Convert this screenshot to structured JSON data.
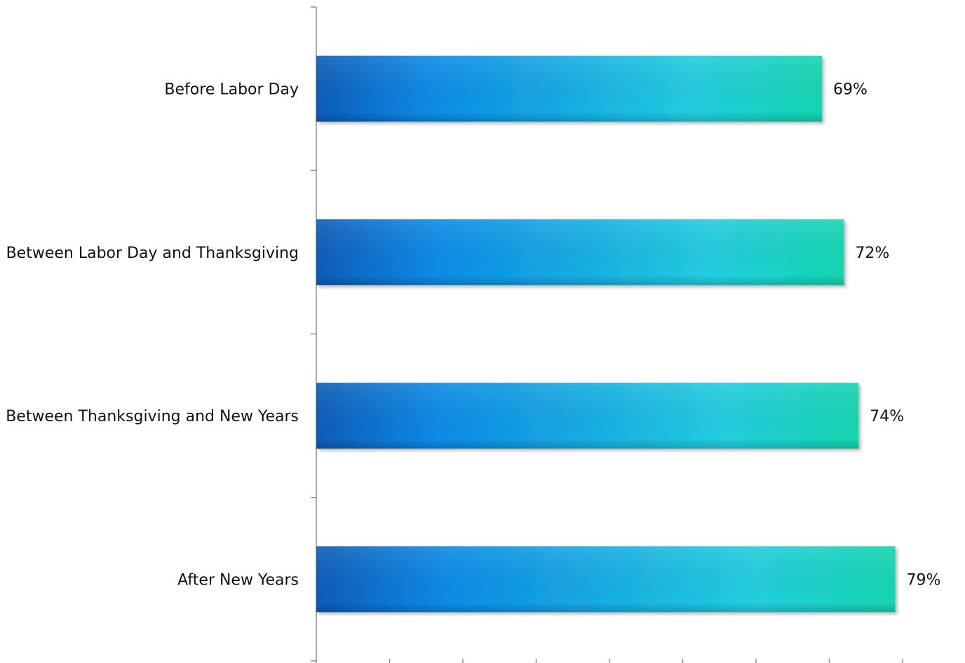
{
  "chart_data": {
    "type": "bar",
    "orientation": "horizontal",
    "categories": [
      "Before Labor Day",
      "Between Labor Day and Thanksgiving",
      "Between Thanksgiving and New Years",
      "After New Years"
    ],
    "values": [
      69,
      72,
      74,
      79
    ],
    "value_labels": [
      "69%",
      "72%",
      "74%",
      "79%"
    ],
    "value_suffix": "%",
    "xlim": [
      0,
      85
    ],
    "x_tick_step": 10,
    "x_tick_labels_shown": false,
    "grid": false,
    "legend": "none",
    "colors": {
      "bar_gradient_start": "#0a5cb8",
      "bar_gradient_mid": "#0a8ae6",
      "bar_gradient_light": "#22cde0",
      "bar_gradient_end": "#13d6b0",
      "axis": "#8c8c8c",
      "text": "#111111"
    }
  }
}
